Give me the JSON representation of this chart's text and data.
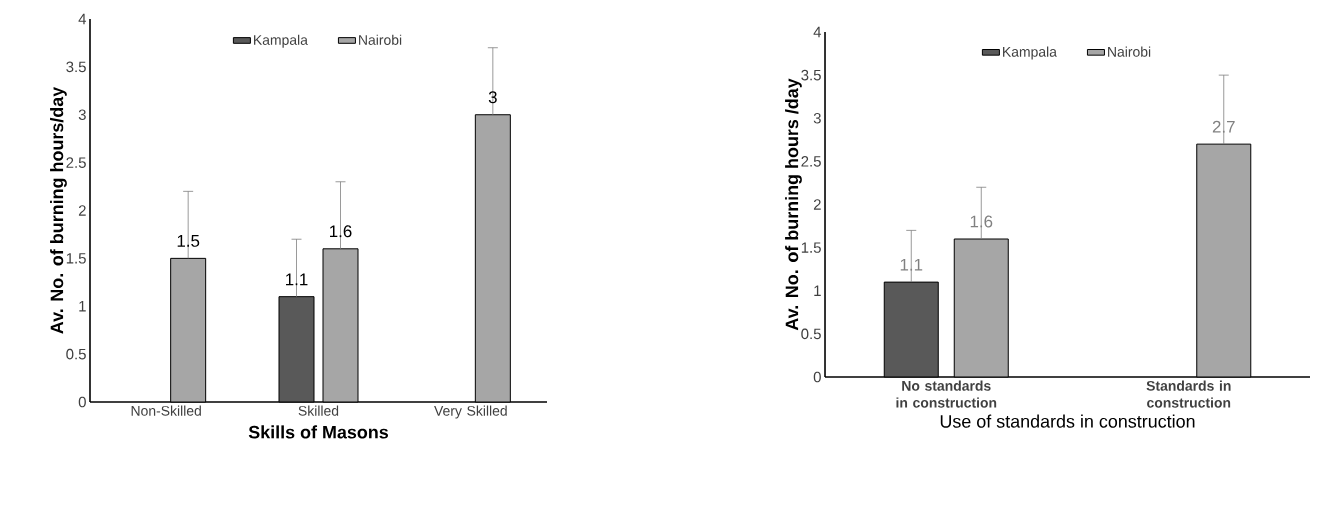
{
  "chart_data": [
    {
      "type": "bar",
      "xlabel": "Skills of Masons",
      "ylabel": "Av. No. of burning hours/day",
      "categories": [
        "Non-Skilled",
        "Skilled",
        "Very Skilled"
      ],
      "series": [
        {
          "name": "Kampala",
          "color": "#595959",
          "values": [
            null,
            1.1,
            null
          ],
          "errors": [
            null,
            [
              1.1,
              1.7
            ],
            null
          ]
        },
        {
          "name": "Nairobi",
          "color": "#a6a6a6",
          "values": [
            1.5,
            1.6,
            3
          ],
          "errors": [
            [
              1.5,
              2.2
            ],
            [
              1.6,
              2.3
            ],
            [
              3,
              3.7
            ]
          ]
        }
      ],
      "ylim": [
        0,
        4
      ],
      "yticks": [
        0,
        0.5,
        1,
        1.5,
        2,
        2.5,
        3,
        3.5,
        4
      ],
      "legend": "top",
      "data_labels": true
    },
    {
      "type": "bar",
      "xlabel": "Use of standards in construction",
      "ylabel": "Av. No. of burning hours /day",
      "categories": [
        "No standards in construction",
        "Standards in construction"
      ],
      "series": [
        {
          "name": "Kampala",
          "color": "#595959",
          "values": [
            1.1,
            null
          ],
          "errors": [
            [
              1.1,
              1.7
            ],
            null
          ]
        },
        {
          "name": "Nairobi",
          "color": "#a6a6a6",
          "values": [
            1.6,
            2.7
          ],
          "errors": [
            [
              1.6,
              2.2
            ],
            [
              2.7,
              3.5
            ]
          ]
        }
      ],
      "ylim": [
        0,
        4
      ],
      "yticks": [
        0,
        0.5,
        1,
        1.5,
        2,
        2.5,
        3,
        3.5,
        4
      ],
      "legend": "top",
      "data_labels": true
    }
  ]
}
